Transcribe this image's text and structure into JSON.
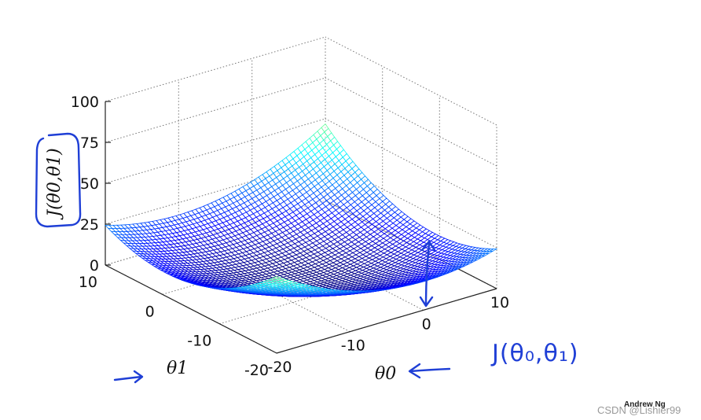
{
  "chart_data": {
    "type": "surface",
    "title": "",
    "zlabel": "J(θ0,θ1)",
    "xlabel": "θ0",
    "ylabel": "θ1",
    "x_range": [
      -20,
      10
    ],
    "y_range": [
      -20,
      10
    ],
    "z_range": [
      0,
      100
    ],
    "x_ticks": [
      "-20",
      "-10",
      "0",
      "10"
    ],
    "y_ticks": [
      "-20",
      "-10",
      "0",
      "10"
    ],
    "z_ticks": [
      "0",
      "25",
      "50",
      "75",
      "100"
    ],
    "surface": "bowl-shaped mesh with minimum near θ0 = -5, θ1 = -5",
    "grid": true,
    "colormap": "jet"
  },
  "annotations": {
    "handwritten_formula": "J(θ₀,θ₁)",
    "credit": "Andrew Ng",
    "watermark": "CSDN @Lishier99"
  }
}
